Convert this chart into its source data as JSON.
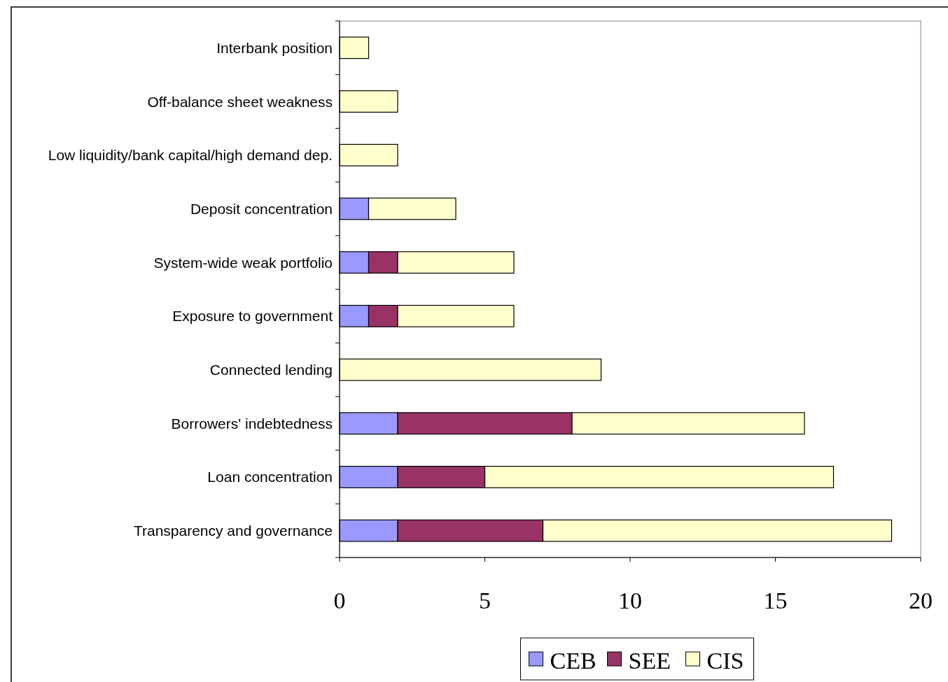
{
  "chart_data": {
    "type": "bar",
    "orientation": "horizontal",
    "stacked": true,
    "categories": [
      "Interbank position",
      "Off-balance sheet weakness",
      "Low liquidity/bank capital/high demand dep.",
      "Deposit concentration",
      "System-wide weak portfolio",
      "Exposure to government",
      "Connected lending",
      "Borrowers' indebtedness",
      "Loan concentration",
      "Transparency and governance"
    ],
    "series": [
      {
        "name": "CEB",
        "color": "#9999ff",
        "values": [
          0,
          0,
          0,
          1,
          1,
          1,
          0,
          2,
          2,
          2
        ]
      },
      {
        "name": "SEE",
        "color": "#993366",
        "values": [
          0,
          0,
          0,
          0,
          1,
          1,
          0,
          6,
          3,
          5
        ]
      },
      {
        "name": "CIS",
        "color": "#ffffcc",
        "values": [
          1,
          2,
          2,
          3,
          4,
          4,
          9,
          8,
          12,
          12
        ]
      }
    ],
    "xlim": [
      0,
      20
    ],
    "xticks": [
      0,
      5,
      10,
      15,
      20
    ],
    "grid": false,
    "legend": "bottom"
  }
}
